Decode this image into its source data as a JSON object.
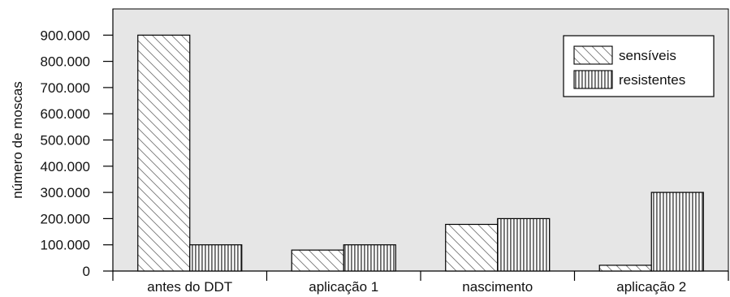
{
  "chart_data": {
    "type": "bar",
    "title": "",
    "xlabel": "",
    "ylabel": "número de moscas",
    "categories": [
      "antes do DDT",
      "aplicação 1",
      "nascimento",
      "aplicação 2"
    ],
    "series": [
      {
        "name": "sensíveis",
        "pattern": "diagonal-hatch",
        "values": [
          900000,
          80000,
          178000,
          22000
        ]
      },
      {
        "name": "resistentes",
        "pattern": "vertical-stripes",
        "values": [
          100000,
          100000,
          200000,
          300000
        ]
      }
    ],
    "yticks": [
      "0",
      "100.000",
      "200.000",
      "300.000",
      "400.000",
      "500.000",
      "600.000",
      "700.000",
      "800.000",
      "900.000"
    ],
    "ylim": [
      0,
      1000000
    ],
    "grid": false,
    "legend_position": "top-right",
    "colors": {
      "plot_background": "#e6e6e6",
      "bar_fill": "#ffffff",
      "stroke": "#000000",
      "stripe": "#707070"
    }
  }
}
